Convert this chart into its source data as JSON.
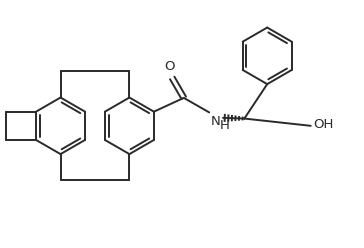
{
  "bg_color": "#ffffff",
  "line_color": "#2a2a2a",
  "line_width": 1.4,
  "fig_width": 3.64,
  "fig_height": 2.48,
  "dpi": 100,
  "xlim": [
    0,
    10
  ],
  "ylim": [
    0,
    6.8
  ]
}
